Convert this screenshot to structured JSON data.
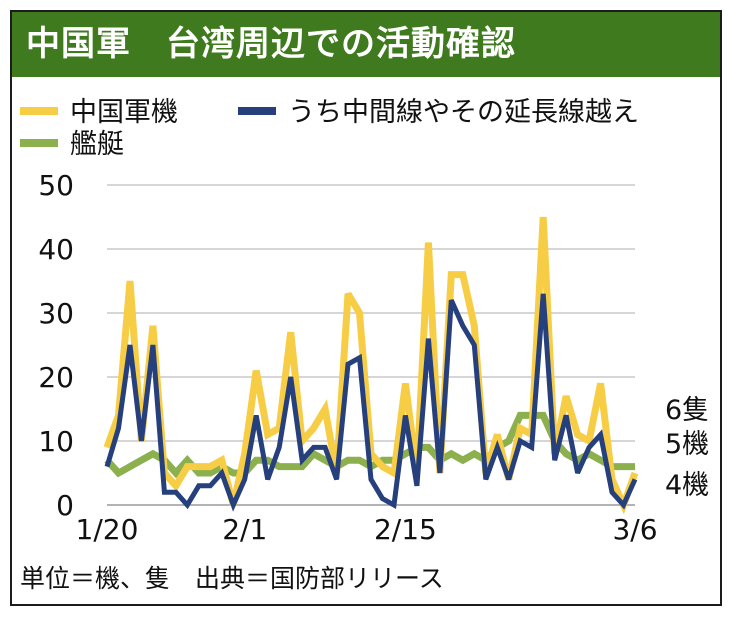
{
  "title": "中国軍　台湾周辺での活動確認",
  "footer": "単位＝機、隻　出典＝国防部リリース",
  "colors": {
    "header": "#3f7a1f",
    "aircraft": "#f7cd45",
    "median_line": "#26407e",
    "ships": "#8cb04d",
    "grid": "#c8c8c8"
  },
  "chart_data": {
    "type": "line",
    "ylim": [
      0,
      50
    ],
    "yticks": [
      0,
      10,
      20,
      30,
      40,
      50
    ],
    "xlim": [
      "1/20",
      "3/6"
    ],
    "xticks": [
      "1/20",
      "2/1",
      "2/15",
      "3/6"
    ],
    "legend_placement": "top",
    "grid": true,
    "x": [
      "1/20",
      "1/21",
      "1/22",
      "1/23",
      "1/24",
      "1/25",
      "1/26",
      "1/27",
      "1/28",
      "1/29",
      "1/30",
      "1/31",
      "2/1",
      "2/2",
      "2/3",
      "2/4",
      "2/5",
      "2/6",
      "2/7",
      "2/8",
      "2/9",
      "2/10",
      "2/11",
      "2/12",
      "2/13",
      "2/14",
      "2/15",
      "2/16",
      "2/17",
      "2/18",
      "2/19",
      "2/20",
      "2/21",
      "2/22",
      "2/23",
      "2/24",
      "2/25",
      "2/26",
      "2/27",
      "2/28",
      "2/29",
      "3/1",
      "3/2",
      "3/3",
      "3/4",
      "3/5",
      "3/6"
    ],
    "series": [
      {
        "name": "中国軍機",
        "color": "#f7cd45",
        "values": [
          9,
          14,
          35,
          10,
          28,
          5,
          3,
          6,
          6,
          6,
          7,
          0,
          8,
          21,
          11,
          12,
          27,
          10,
          12,
          15,
          5,
          33,
          30,
          8,
          6,
          5,
          19,
          5,
          41,
          5,
          36,
          36,
          28,
          5,
          11,
          4,
          12,
          11,
          45,
          8,
          17,
          11,
          10,
          19,
          4,
          0,
          5
        ]
      },
      {
        "name": "うち中間線やその延長線越え",
        "color": "#26407e",
        "values": [
          6,
          12,
          25,
          10,
          25,
          2,
          2,
          0,
          3,
          3,
          5,
          0,
          4,
          14,
          4,
          9,
          20,
          7,
          9,
          9,
          4,
          22,
          23,
          4,
          1,
          0,
          14,
          3,
          26,
          5,
          32,
          28,
          25,
          4,
          9,
          4,
          10,
          9,
          33,
          7,
          14,
          5,
          9,
          11,
          2,
          0,
          4
        ]
      },
      {
        "name": "艦艇",
        "color": "#8cb04d",
        "values": [
          7,
          5,
          6,
          7,
          8,
          7,
          5,
          7,
          5,
          5,
          6,
          5,
          5,
          7,
          7,
          6,
          6,
          6,
          8,
          7,
          6,
          7,
          7,
          6,
          7,
          7,
          8,
          9,
          9,
          7,
          8,
          7,
          8,
          7,
          9,
          10,
          14,
          14,
          14,
          10,
          8,
          7,
          8,
          7,
          6,
          6,
          6
        ]
      }
    ],
    "end_labels": [
      "6隻",
      "5機",
      "4機"
    ]
  }
}
